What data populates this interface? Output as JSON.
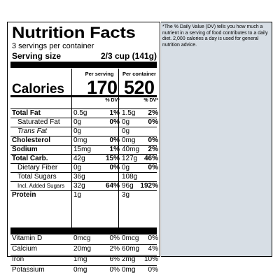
{
  "title": "Nutrition Facts",
  "servings_per_container": "3 servings per container",
  "serving_size": {
    "label": "Serving size",
    "value": "2/3 cup (141g)"
  },
  "columns": {
    "per_serving": "Per serving",
    "per_container": "Per container"
  },
  "calories": {
    "label": "Calories",
    "per_serving": "170",
    "per_container": "520"
  },
  "dv_header": "% DV*",
  "nutrients": [
    {
      "label": "Total Fat",
      "bold": true,
      "indent": false,
      "amt1": "0.5g",
      "dv1": "1%",
      "amt2": "1.5g",
      "dv2": "2%"
    },
    {
      "label": "Saturated Fat",
      "bold": false,
      "indent": true,
      "amt1": "0g",
      "dv1": "0%",
      "amt2": "0g",
      "dv2": "0%"
    },
    {
      "label": "Trans Fat",
      "bold": false,
      "indent": true,
      "amt1": "0g",
      "dv1": "",
      "amt2": "0g",
      "dv2": ""
    },
    {
      "label": "Cholesterol",
      "bold": true,
      "indent": false,
      "amt1": "0mg",
      "dv1": "0%",
      "amt2": "0mg",
      "dv2": "0%"
    },
    {
      "label": "Sodium",
      "bold": true,
      "indent": false,
      "amt1": "15mg",
      "dv1": "1%",
      "amt2": "40mg",
      "dv2": "2%"
    },
    {
      "label": "Total Carb.",
      "bold": true,
      "indent": false,
      "amt1": "42g",
      "dv1": "15%",
      "amt2": "127g",
      "dv2": "46%"
    },
    {
      "label": "Dietary Fiber",
      "bold": false,
      "indent": true,
      "amt1": "0g",
      "dv1": "0%",
      "amt2": "0g",
      "dv2": "0%"
    },
    {
      "label": "Total Sugars",
      "bold": false,
      "indent": true,
      "amt1": "36g",
      "dv1": "",
      "amt2": "108g",
      "dv2": ""
    },
    {
      "label": "Incl. Added Sugars",
      "bold": false,
      "indent": true,
      "amt1": "32g",
      "dv1": "64%",
      "amt2": "96g",
      "dv2": "192%"
    },
    {
      "label": "Protein",
      "bold": true,
      "indent": false,
      "amt1": "1g",
      "dv1": "",
      "amt2": "3g",
      "dv2": ""
    }
  ],
  "vitamins": [
    {
      "label": "Vitamin D",
      "amt1": "0mcg",
      "dv1": "0%",
      "amt2": "0mcg",
      "dv2": "0%"
    },
    {
      "label": "Calcium",
      "amt1": "20mg",
      "dv1": "2%",
      "amt2": "60mg",
      "dv2": "4%"
    },
    {
      "label": "Iron",
      "amt1": "1mg",
      "dv1": "6%",
      "amt2": "2mg",
      "dv2": "10%"
    },
    {
      "label": "Potassium",
      "amt1": "0mg",
      "dv1": "0%",
      "amt2": "0mg",
      "dv2": "0%"
    }
  ],
  "footnote": "*The % Daily Value (DV) tells you how much a nutrient in a serving of food contributes to a daily diet. 2,000 calories a day is used for general nutrition advice."
}
